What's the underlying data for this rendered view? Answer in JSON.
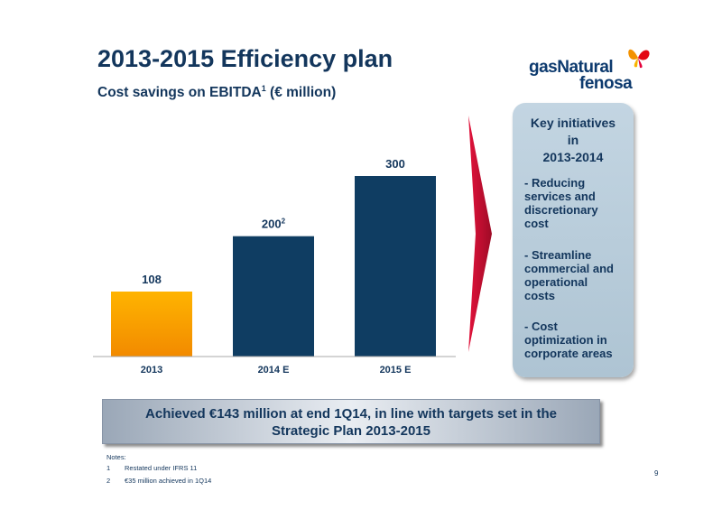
{
  "title": "2013-2015 Efficiency plan",
  "subtitle": {
    "text": "Cost savings on EBITDA",
    "sup": "1",
    "unit": "(€ million)"
  },
  "logo": {
    "line1": "gasNatural",
    "line2": "fenosa"
  },
  "chart_data": {
    "type": "bar",
    "title": "Cost savings on EBITDA (€ million)",
    "categories": [
      "2013",
      "2014 E",
      "2015 E"
    ],
    "values": [
      108,
      200,
      300
    ],
    "labels": [
      "108",
      "200",
      "300"
    ],
    "label_footnotes": [
      "",
      "2",
      ""
    ],
    "colors": [
      "#f5a000",
      "#0f3d62",
      "#0f3d62"
    ],
    "ylim": [
      0,
      300
    ],
    "gridlines": [
      50,
      100,
      150
    ],
    "grid": true,
    "xlabel": "",
    "ylabel": ""
  },
  "initiatives": {
    "heading": "Key initiatives\nin\n2013-2014",
    "items": [
      "- Reducing\nservices and\ndiscretionary\ncost",
      "- Streamline\ncommercial and\noperational\ncosts",
      "- Cost\noptimization in\ncorporate areas"
    ]
  },
  "banner": "Achieved €143 million at end 1Q14,  in line with targets set in the\nStrategic Plan 2013-2015",
  "notes": {
    "label": "Notes:",
    "items": [
      {
        "num": "1",
        "text": "Restated under IFRS 11"
      },
      {
        "num": "2",
        "text": "€35 million achieved in 1Q14"
      }
    ]
  },
  "page_number": "9",
  "colors": {
    "navy": "#13365c",
    "accent_red": "#c8102e",
    "orange": "#f5a000"
  }
}
